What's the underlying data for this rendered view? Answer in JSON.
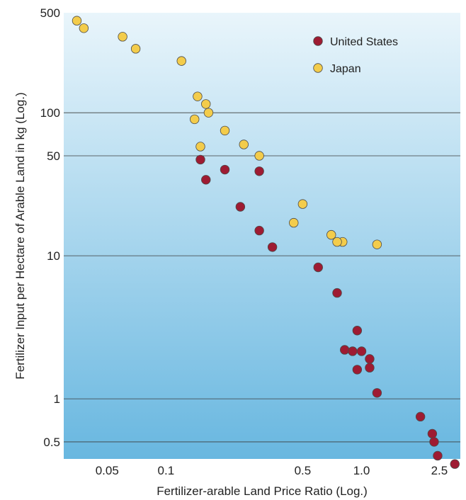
{
  "chart_data": {
    "type": "scatter",
    "xlabel": "Fertilizer-arable Land Price Ratio (Log.)",
    "ylabel": "Fertilizer Input per Hectare of Arable Land in kg (Log.)",
    "x_scale": "log",
    "y_scale": "log",
    "xlim": [
      0.03,
      3.2
    ],
    "ylim": [
      0.38,
      500
    ],
    "x_ticks": [
      0.05,
      0.1,
      0.5,
      1.0,
      2.5
    ],
    "x_tick_labels": [
      "0.05",
      "0.1",
      "0.5",
      "1.0",
      "2.5"
    ],
    "y_ticks": [
      0.5,
      1,
      10,
      50,
      100,
      500
    ],
    "y_tick_labels": [
      "0.5",
      "1",
      "10",
      "50",
      "100",
      "500"
    ],
    "grid_y": true,
    "legend_position": "top-right",
    "background_gradient": [
      "#e9f5fb",
      "#68b7e0"
    ],
    "series": [
      {
        "name": "United States",
        "color": "#9e1b32",
        "points": [
          [
            0.15,
            47
          ],
          [
            0.16,
            34
          ],
          [
            0.2,
            40
          ],
          [
            0.24,
            22
          ],
          [
            0.3,
            39
          ],
          [
            0.3,
            15
          ],
          [
            0.35,
            11.5
          ],
          [
            0.6,
            8.3
          ],
          [
            0.75,
            5.5
          ],
          [
            0.95,
            3.0
          ],
          [
            0.82,
            2.2
          ],
          [
            0.9,
            2.15
          ],
          [
            1.0,
            2.15
          ],
          [
            0.95,
            1.6
          ],
          [
            1.1,
            1.9
          ],
          [
            1.1,
            1.65
          ],
          [
            1.2,
            1.1
          ],
          [
            2.0,
            0.75
          ],
          [
            2.3,
            0.57
          ],
          [
            2.35,
            0.5
          ],
          [
            2.45,
            0.4
          ],
          [
            3.0,
            0.35
          ]
        ]
      },
      {
        "name": "Japan",
        "color": "#f3cc4b",
        "points": [
          [
            0.035,
            440
          ],
          [
            0.038,
            390
          ],
          [
            0.06,
            340
          ],
          [
            0.07,
            280
          ],
          [
            0.12,
            230
          ],
          [
            0.145,
            130
          ],
          [
            0.16,
            115
          ],
          [
            0.165,
            100
          ],
          [
            0.14,
            90
          ],
          [
            0.2,
            75
          ],
          [
            0.25,
            60
          ],
          [
            0.15,
            58
          ],
          [
            0.3,
            50
          ],
          [
            0.5,
            23
          ],
          [
            0.45,
            17
          ],
          [
            0.7,
            14
          ],
          [
            0.8,
            12.5
          ],
          [
            0.75,
            12.5
          ],
          [
            1.2,
            12
          ]
        ]
      }
    ]
  }
}
